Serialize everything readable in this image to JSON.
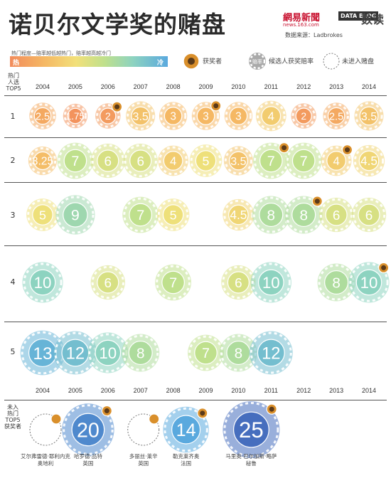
{
  "header": {
    "title": "诺贝尔文学奖的赌盘",
    "logo_netease": "網易新聞",
    "logo_netease_sub": "news.163.com",
    "logo_datablog": "DATA BLOG",
    "logo_shudu": "数读",
    "source": "数据来源：Ladbrokes"
  },
  "legend": {
    "scale_label": "热门程度—赔率越低越热门，赔率越高越冷门",
    "hot": "热",
    "cold": "冷",
    "winner": "获奖者",
    "odds_sample": "赔率",
    "odds_label": "候选人获奖赔率",
    "not_listed": "未进入赌盘"
  },
  "axes": {
    "row_header": [
      "热门",
      "人选",
      "TOP5"
    ],
    "bottom_header": [
      "未入",
      "热门",
      "TOP5",
      "获奖者"
    ]
  },
  "colors": {
    "hot": "#f28c5c",
    "cold": "#5aa9de",
    "winner_badge": "#d98f2b"
  },
  "chart_data": {
    "type": "bubble",
    "title": "诺贝尔文学奖的赌盘",
    "x": [
      "2004",
      "2005",
      "2006",
      "2007",
      "2008",
      "2009",
      "2010",
      "2011",
      "2012",
      "2013",
      "2014"
    ],
    "rows": [
      "1",
      "2",
      "3",
      "4",
      "5"
    ],
    "entries": [
      {
        "year": "2004",
        "rank": 1,
        "odds": "2.5",
        "name": "",
        "winner": false
      },
      {
        "year": "2005",
        "rank": 1,
        "odds": "1.75",
        "name": "",
        "winner": false
      },
      {
        "year": "2006",
        "rank": 1,
        "odds": "2",
        "name": "",
        "winner": true
      },
      {
        "year": "2007",
        "rank": 1,
        "odds": "3.5",
        "name": "",
        "winner": false
      },
      {
        "year": "2008",
        "rank": 1,
        "odds": "3",
        "name": "",
        "winner": false
      },
      {
        "year": "2009",
        "rank": 1,
        "odds": "3",
        "name": "",
        "winner": true
      },
      {
        "year": "2010",
        "rank": 1,
        "odds": "3",
        "name": "",
        "winner": false
      },
      {
        "year": "2011",
        "rank": 1,
        "odds": "4",
        "name": "",
        "winner": false
      },
      {
        "year": "2012",
        "rank": 1,
        "odds": "2",
        "name": "",
        "winner": false
      },
      {
        "year": "2013",
        "rank": 1,
        "odds": "2.5",
        "name": "",
        "winner": false
      },
      {
        "year": "2014",
        "rank": 1,
        "odds": "3.5",
        "name": "",
        "winner": false
      },
      {
        "year": "2004",
        "rank": 2,
        "odds": "3.25",
        "name": "",
        "winner": false
      },
      {
        "year": "2005",
        "rank": 2,
        "odds": "7",
        "name": "",
        "winner": false
      },
      {
        "year": "2006",
        "rank": 2,
        "odds": "6",
        "name": "",
        "winner": false
      },
      {
        "year": "2007",
        "rank": 2,
        "odds": "6",
        "name": "",
        "winner": false
      },
      {
        "year": "2008",
        "rank": 2,
        "odds": "4",
        "name": "",
        "winner": false
      },
      {
        "year": "2009",
        "rank": 2,
        "odds": "5",
        "name": "",
        "winner": false
      },
      {
        "year": "2010",
        "rank": 2,
        "odds": "3.5",
        "name": "",
        "winner": false
      },
      {
        "year": "2011",
        "rank": 2,
        "odds": "7",
        "name": "",
        "winner": true
      },
      {
        "year": "2012",
        "rank": 2,
        "odds": "7",
        "name": "",
        "winner": false
      },
      {
        "year": "2013",
        "rank": 2,
        "odds": "4",
        "name": "",
        "winner": true
      },
      {
        "year": "2014",
        "rank": 2,
        "odds": "4.5",
        "name": "",
        "winner": false
      },
      {
        "year": "2004",
        "rank": 3,
        "odds": "5",
        "name": "",
        "winner": false
      },
      {
        "year": "2005",
        "rank": 3,
        "odds": "9",
        "name": "",
        "winner": false
      },
      {
        "year": "2007",
        "rank": 3,
        "odds": "7",
        "name": "",
        "winner": false
      },
      {
        "year": "2008",
        "rank": 3,
        "odds": "5",
        "name": "",
        "winner": false
      },
      {
        "year": "2010",
        "rank": 3,
        "odds": "4.5",
        "name": "",
        "winner": false
      },
      {
        "year": "2011",
        "rank": 3,
        "odds": "8",
        "name": "",
        "winner": false
      },
      {
        "year": "2012",
        "rank": 3,
        "odds": "8",
        "name": "",
        "winner": true
      },
      {
        "year": "2013",
        "rank": 3,
        "odds": "6",
        "name": "",
        "winner": false
      },
      {
        "year": "2014",
        "rank": 3,
        "odds": "6",
        "name": "",
        "winner": false
      },
      {
        "year": "2004",
        "rank": 4,
        "odds": "10",
        "name": "",
        "winner": false
      },
      {
        "year": "2006",
        "rank": 4,
        "odds": "6",
        "name": "",
        "winner": false
      },
      {
        "year": "2008",
        "rank": 4,
        "odds": "7",
        "name": "",
        "winner": false
      },
      {
        "year": "2010",
        "rank": 4,
        "odds": "6",
        "name": "",
        "winner": false
      },
      {
        "year": "2011",
        "rank": 4,
        "odds": "10",
        "name": "",
        "winner": false
      },
      {
        "year": "2013",
        "rank": 4,
        "odds": "8",
        "name": "",
        "winner": false
      },
      {
        "year": "2014",
        "rank": 4,
        "odds": "10",
        "name": "",
        "winner": true
      },
      {
        "year": "2004",
        "rank": 5,
        "odds": "13",
        "name": "",
        "winner": false
      },
      {
        "year": "2005",
        "rank": 5,
        "odds": "12",
        "name": "",
        "winner": false
      },
      {
        "year": "2006",
        "rank": 5,
        "odds": "10",
        "name": "",
        "winner": false
      },
      {
        "year": "2007",
        "rank": 5,
        "odds": "8",
        "name": "",
        "winner": false
      },
      {
        "year": "2009",
        "rank": 5,
        "odds": "7",
        "name": "",
        "winner": false
      },
      {
        "year": "2010",
        "rank": 5,
        "odds": "8",
        "name": "",
        "winner": false
      },
      {
        "year": "2011",
        "rank": 5,
        "odds": "12",
        "name": "",
        "winner": false
      }
    ],
    "outside_top5_winners": [
      {
        "year": "2004",
        "odds": "",
        "name": "艾尔弗雷德·耶利内克",
        "country": "奥地利",
        "listed": false
      },
      {
        "year": "2005",
        "odds": "20",
        "name": "哈罗德·品特",
        "country": "英国",
        "listed": true
      },
      {
        "year": "2007",
        "odds": "",
        "name": "多丽丝·莱辛",
        "country": "英国",
        "listed": false
      },
      {
        "year": "2008",
        "odds": "14",
        "name": "勒克莱齐奥",
        "country": "法国",
        "listed": true
      },
      {
        "year": "2010",
        "odds": "25",
        "name": "马里奥·巴尔加斯·略萨",
        "country": "秘鲁",
        "listed": true
      }
    ]
  }
}
